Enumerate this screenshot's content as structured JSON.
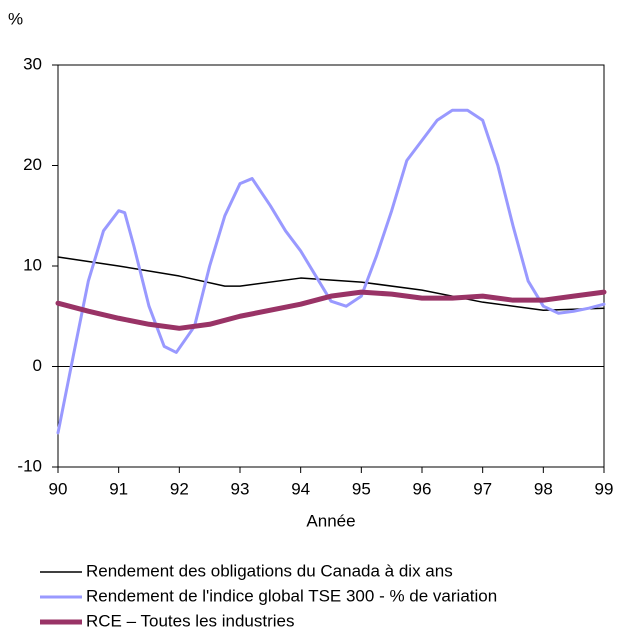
{
  "chart_data": {
    "type": "line",
    "y_label": "%",
    "x_label": "Année",
    "xlim": [
      90,
      99
    ],
    "xticks": [
      90,
      91,
      92,
      93,
      94,
      95,
      96,
      97,
      98,
      99
    ],
    "ylim": [
      -10,
      30
    ],
    "yticks": [
      -10,
      0,
      10,
      20,
      30
    ],
    "series": [
      {
        "name": "Rendement des obligations du Canada à dix ans",
        "color": "#000000",
        "width": 1.5,
        "x": [
          90,
          91,
          92,
          92.75,
          93,
          94,
          95,
          96,
          97,
          98,
          99
        ],
        "values": [
          10.9,
          10.0,
          9.0,
          8.0,
          8.0,
          8.8,
          8.4,
          7.6,
          6.4,
          5.6,
          5.8
        ]
      },
      {
        "name": "Rendement de l'indice global TSE 300 - % de variation",
        "color": "#9999ff",
        "width": 3,
        "x": [
          90,
          90.25,
          90.5,
          90.75,
          91,
          91.1,
          91.25,
          91.5,
          91.75,
          91.95,
          92.25,
          92.5,
          92.75,
          93,
          93.2,
          93.5,
          93.75,
          94,
          94.25,
          94.5,
          94.75,
          95,
          95.25,
          95.5,
          95.75,
          96,
          96.25,
          96.5,
          96.75,
          97,
          97.25,
          97.5,
          97.75,
          98,
          98.25,
          98.5,
          98.75,
          99
        ],
        "values": [
          -6.6,
          1,
          8.5,
          13.5,
          15.5,
          15.3,
          12,
          6,
          2,
          1.4,
          4,
          10,
          15,
          18.2,
          18.7,
          16,
          13.5,
          11.5,
          9,
          6.5,
          6,
          7,
          11,
          15.5,
          20.5,
          22.5,
          24.5,
          25.5,
          25.5,
          24.5,
          20,
          14,
          8.5,
          6,
          5.3,
          5.5,
          5.8,
          6.2
        ]
      },
      {
        "name": "RCE – Toutes les industries",
        "color": "#993366",
        "width": 5,
        "x": [
          90,
          90.5,
          91,
          91.5,
          92,
          92.5,
          93,
          94,
          94.5,
          95,
          95.5,
          96,
          96.5,
          97,
          97.5,
          98,
          98.5,
          99
        ],
        "values": [
          6.3,
          5.5,
          4.8,
          4.2,
          3.8,
          4.2,
          5.0,
          6.2,
          7.0,
          7.4,
          7.2,
          6.8,
          6.8,
          7.0,
          6.6,
          6.6,
          7.0,
          7.4
        ]
      }
    ]
  }
}
